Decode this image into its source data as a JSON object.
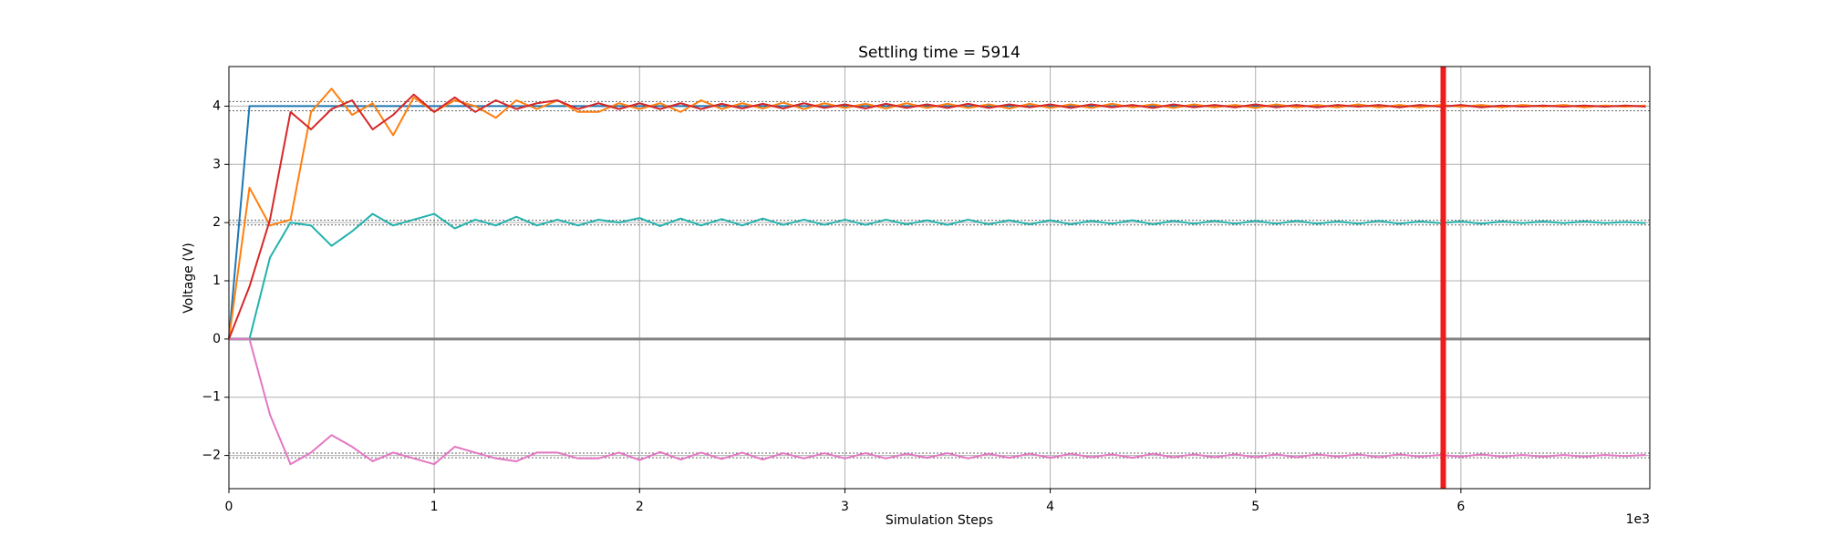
{
  "chart_data": {
    "type": "line",
    "title": "Settling time = 5914",
    "xlabel": "Simulation Steps",
    "ylabel": "Voltage (V)",
    "x_offset_label": "1e3",
    "x": [
      0,
      100,
      200,
      300,
      400,
      500,
      600,
      700,
      800,
      900,
      1000,
      1100,
      1200,
      1300,
      1400,
      1500,
      1600,
      1700,
      1800,
      1900,
      2000,
      2100,
      2200,
      2300,
      2400,
      2500,
      2600,
      2700,
      2800,
      2900,
      3000,
      3100,
      3200,
      3300,
      3400,
      3500,
      3600,
      3700,
      3800,
      3900,
      4000,
      4100,
      4200,
      4300,
      4400,
      4500,
      4600,
      4700,
      4800,
      4900,
      5000,
      5100,
      5200,
      5300,
      5400,
      5500,
      5600,
      5700,
      5800,
      5900,
      6000,
      6100,
      6200,
      6300,
      6400,
      6500,
      6600,
      6700,
      6800,
      6900
    ],
    "series": [
      {
        "name": "blue",
        "color": "#1f77b4",
        "values": [
          0,
          4,
          4,
          4,
          4,
          4,
          4,
          4,
          4,
          4,
          4,
          4,
          4,
          4,
          4,
          4,
          4,
          4,
          4,
          4,
          4,
          4,
          4,
          4,
          4,
          4,
          4,
          4,
          4,
          4,
          4,
          4,
          4,
          4,
          4,
          4,
          4,
          4,
          4,
          4,
          4,
          4,
          4,
          4,
          4,
          4,
          4,
          4,
          4,
          4,
          4,
          4,
          4,
          4,
          4,
          4,
          4,
          4,
          4,
          4,
          4,
          4,
          4,
          4,
          4,
          4,
          4,
          4,
          4,
          4
        ]
      },
      {
        "name": "orange",
        "color": "#ff7f0e",
        "values": [
          0,
          2.6,
          1.95,
          2.05,
          3.9,
          4.3,
          3.85,
          4.05,
          3.5,
          4.15,
          3.9,
          4.1,
          4.0,
          3.8,
          4.1,
          3.95,
          4.1,
          3.9,
          3.9,
          4.05,
          3.95,
          4.05,
          3.9,
          4.1,
          3.95,
          4.05,
          3.96,
          4.06,
          3.95,
          4.05,
          3.97,
          4.04,
          3.96,
          4.05,
          3.97,
          4.04,
          3.97,
          4.03,
          3.96,
          4.04,
          3.97,
          4.03,
          3.97,
          4.04,
          3.98,
          4.03,
          3.97,
          4.03,
          3.98,
          4.02,
          3.97,
          4.03,
          3.98,
          4.02,
          3.98,
          4.03,
          3.98,
          4.02,
          3.98,
          4.02,
          3.99,
          4.02,
          3.98,
          4.02,
          3.99,
          4.02,
          3.98,
          4.01,
          3.99,
          4.01
        ]
      },
      {
        "name": "red",
        "color": "#d62728",
        "values": [
          0,
          0.9,
          2.05,
          3.9,
          3.6,
          3.95,
          4.1,
          3.6,
          3.85,
          4.2,
          3.9,
          4.15,
          3.9,
          4.1,
          3.95,
          4.05,
          4.1,
          3.95,
          4.05,
          3.95,
          4.05,
          3.95,
          4.05,
          3.95,
          4.04,
          3.96,
          4.04,
          3.96,
          4.05,
          3.97,
          4.03,
          3.96,
          4.04,
          3.97,
          4.03,
          3.97,
          4.04,
          3.97,
          4.03,
          3.98,
          4.03,
          3.97,
          4.03,
          3.98,
          4.02,
          3.97,
          4.03,
          3.98,
          4.02,
          3.98,
          4.03,
          3.98,
          4.02,
          3.98,
          4.02,
          3.99,
          4.02,
          3.98,
          4.02,
          3.99,
          4.02,
          3.98,
          4.01,
          3.99,
          4.01,
          3.99,
          4.01,
          3.99,
          4.01,
          3.99
        ]
      },
      {
        "name": "teal",
        "color": "#22b2ac",
        "values": [
          0,
          0,
          1.4,
          2.0,
          1.95,
          1.6,
          1.85,
          2.15,
          1.95,
          2.05,
          2.15,
          1.9,
          2.05,
          1.95,
          2.1,
          1.95,
          2.05,
          1.95,
          2.05,
          2.0,
          2.08,
          1.94,
          2.07,
          1.95,
          2.06,
          1.95,
          2.07,
          1.96,
          2.05,
          1.96,
          2.05,
          1.96,
          2.05,
          1.97,
          2.04,
          1.96,
          2.05,
          1.97,
          2.04,
          1.97,
          2.04,
          1.97,
          2.03,
          1.98,
          2.04,
          1.97,
          2.03,
          1.98,
          2.03,
          1.98,
          2.03,
          1.98,
          2.03,
          1.98,
          2.02,
          1.98,
          2.03,
          1.98,
          2.02,
          1.99,
          2.02,
          1.98,
          2.02,
          1.99,
          2.02,
          1.99,
          2.02,
          1.99,
          2.01,
          1.99
        ]
      },
      {
        "name": "pink",
        "color": "#e377c2",
        "values": [
          0,
          0,
          -1.3,
          -2.15,
          -1.95,
          -1.65,
          -1.85,
          -2.1,
          -1.95,
          -2.05,
          -2.15,
          -1.85,
          -1.95,
          -2.05,
          -2.1,
          -1.95,
          -1.95,
          -2.05,
          -2.05,
          -1.95,
          -2.08,
          -1.94,
          -2.07,
          -1.95,
          -2.06,
          -1.95,
          -2.07,
          -1.96,
          -2.05,
          -1.96,
          -2.05,
          -1.96,
          -2.05,
          -1.97,
          -2.04,
          -1.96,
          -2.05,
          -1.97,
          -2.04,
          -1.97,
          -2.04,
          -1.97,
          -2.03,
          -1.98,
          -2.04,
          -1.97,
          -2.03,
          -1.98,
          -2.03,
          -1.98,
          -2.03,
          -1.98,
          -2.03,
          -1.98,
          -2.02,
          -1.98,
          -2.03,
          -1.98,
          -2.02,
          -1.99,
          -2.02,
          -1.98,
          -2.02,
          -1.99,
          -2.02,
          -1.99,
          -2.02,
          -1.99,
          -2.01,
          -1.99
        ]
      }
    ],
    "tolerance_bands": [
      [
        3.92,
        4.08
      ],
      [
        1.96,
        2.04
      ],
      [
        -2.04,
        -1.96
      ]
    ],
    "hline": 0,
    "vline": 5914,
    "vline_color": "#ee1c1c",
    "xlim": [
      0,
      6920
    ],
    "ylim": [
      -2.57,
      4.68
    ],
    "xticks": [
      0,
      {
        "value": 1000,
        "label": "1"
      },
      {
        "value": 2000,
        "label": "2"
      },
      {
        "value": 3000,
        "label": "3"
      },
      {
        "value": 4000,
        "label": "4"
      },
      {
        "value": 5000,
        "label": "5"
      },
      {
        "value": 6000,
        "label": "6"
      }
    ],
    "yticks": [
      {
        "value": -2,
        "label": "−2"
      },
      {
        "value": -1,
        "label": "−1"
      },
      0,
      1,
      2,
      3,
      4
    ],
    "grid": true
  }
}
